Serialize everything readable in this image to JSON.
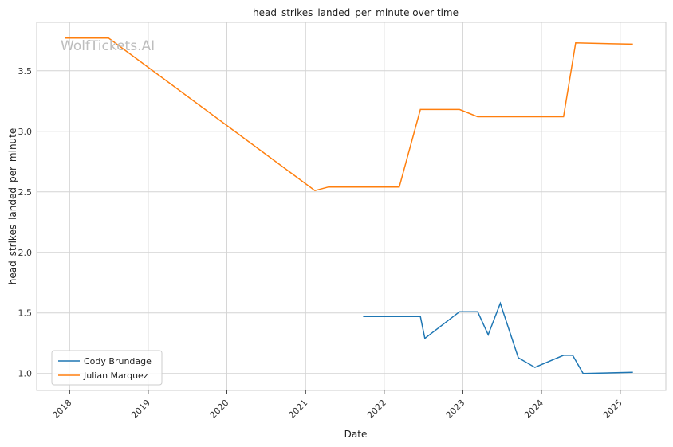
{
  "watermark": "WolfTickets.AI",
  "colors": {
    "series_1": "#1f77b4",
    "series_2": "#ff7f0e",
    "grid": "#d3d3d3"
  },
  "chart_data": {
    "type": "line",
    "title": "head_strikes_landed_per_minute over time",
    "xlabel": "Date",
    "ylabel": "head_strikes_landed_per_minute",
    "x_ticks": [
      "2018",
      "2019",
      "2020",
      "2021",
      "2022",
      "2023",
      "2024",
      "2025"
    ],
    "y_ticks": [
      "1.0",
      "1.5",
      "2.0",
      "2.5",
      "3.0",
      "3.5"
    ],
    "xlim": [
      "2017-08-01",
      "2025-08-01"
    ],
    "ylim": [
      0.86,
      3.9
    ],
    "grid": true,
    "legend_position": "lower-left",
    "series": [
      {
        "name": "Cody Brundage",
        "points": [
          [
            "2021-09-25",
            1.47
          ],
          [
            "2022-06-18",
            1.47
          ],
          [
            "2022-07-09",
            1.29
          ],
          [
            "2022-12-17",
            1.51
          ],
          [
            "2023-03-11",
            1.51
          ],
          [
            "2023-04-29",
            1.32
          ],
          [
            "2023-06-24",
            1.58
          ],
          [
            "2023-09-16",
            1.13
          ],
          [
            "2023-12-02",
            1.05
          ],
          [
            "2024-04-13",
            1.15
          ],
          [
            "2024-05-25",
            1.15
          ],
          [
            "2024-07-13",
            1.0
          ],
          [
            "2025-03-01",
            1.01
          ]
        ]
      },
      {
        "name": "Julian Marquez",
        "points": [
          [
            "2017-12-09",
            3.77
          ],
          [
            "2018-07-01",
            3.77
          ],
          [
            "2021-02-13",
            2.51
          ],
          [
            "2021-04-17",
            2.54
          ],
          [
            "2022-03-12",
            2.54
          ],
          [
            "2022-06-18",
            3.18
          ],
          [
            "2022-12-17",
            3.18
          ],
          [
            "2023-03-11",
            3.12
          ],
          [
            "2024-04-13",
            3.12
          ],
          [
            "2024-06-08",
            3.73
          ],
          [
            "2025-03-01",
            3.72
          ]
        ]
      }
    ]
  }
}
